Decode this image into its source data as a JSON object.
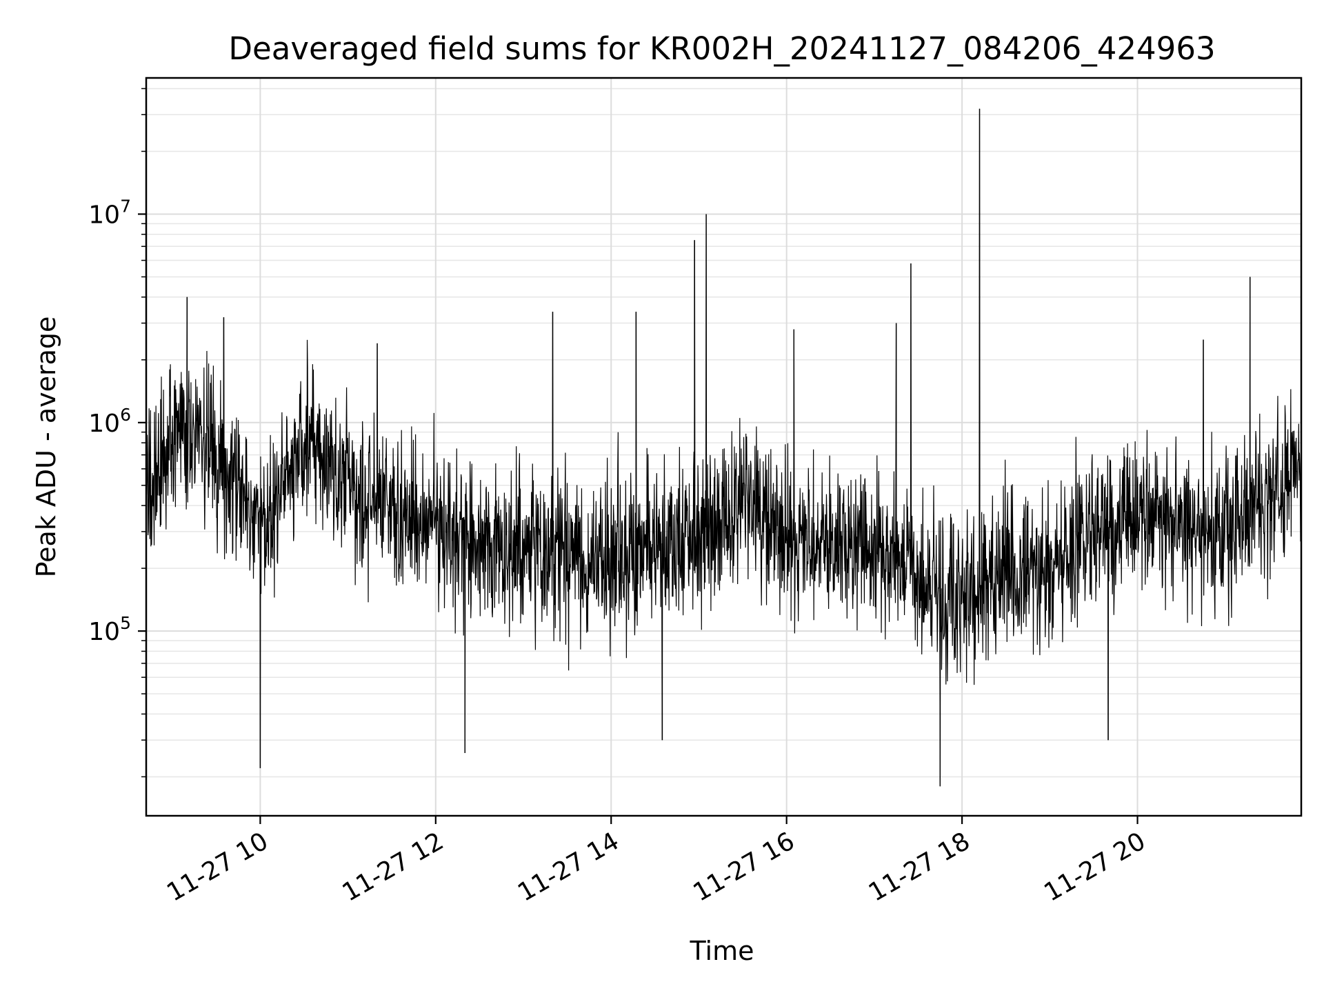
{
  "chart_data": {
    "type": "line",
    "title": "Deaveraged field sums for KR002H_20241127_084206_424963",
    "xlabel": "Time",
    "ylabel": "Peak ADU - average",
    "y_scale": "log",
    "x_range": [
      "2024-11-27T08:42",
      "2024-11-27T21:52"
    ],
    "ylim": [
      13000,
      45000000
    ],
    "grid": {
      "major": true,
      "minor_y": true
    },
    "line_color": "#000000",
    "x_ticks": [
      {
        "time": "2024-11-27T10:00",
        "label": "11-27 10"
      },
      {
        "time": "2024-11-27T12:00",
        "label": "11-27 12"
      },
      {
        "time": "2024-11-27T14:00",
        "label": "11-27 14"
      },
      {
        "time": "2024-11-27T16:00",
        "label": "11-27 16"
      },
      {
        "time": "2024-11-27T18:00",
        "label": "11-27 18"
      },
      {
        "time": "2024-11-27T20:00",
        "label": "11-27 20"
      }
    ],
    "y_ticks": [
      {
        "value": 100000,
        "base": "10",
        "exp": "5"
      },
      {
        "value": 1000000,
        "base": "10",
        "exp": "6"
      },
      {
        "value": 10000000,
        "base": "10",
        "exp": "7"
      }
    ],
    "trend": [
      {
        "time": "2024-11-27T08:42",
        "value": 500000
      },
      {
        "time": "2024-11-27T09:00",
        "value": 800000
      },
      {
        "time": "2024-11-27T09:15",
        "value": 1000000
      },
      {
        "time": "2024-11-27T09:30",
        "value": 700000
      },
      {
        "time": "2024-11-27T10:00",
        "value": 300000
      },
      {
        "time": "2024-11-27T10:30",
        "value": 800000
      },
      {
        "time": "2024-11-27T11:00",
        "value": 550000
      },
      {
        "time": "2024-11-27T11:30",
        "value": 400000
      },
      {
        "time": "2024-11-27T12:00",
        "value": 300000
      },
      {
        "time": "2024-11-27T13:00",
        "value": 250000
      },
      {
        "time": "2024-11-27T14:00",
        "value": 220000
      },
      {
        "time": "2024-11-27T15:00",
        "value": 300000
      },
      {
        "time": "2024-11-27T15:30",
        "value": 400000
      },
      {
        "time": "2024-11-27T16:00",
        "value": 300000
      },
      {
        "time": "2024-11-27T17:00",
        "value": 250000
      },
      {
        "time": "2024-11-27T17:45",
        "value": 150000
      },
      {
        "time": "2024-11-27T18:00",
        "value": 140000
      },
      {
        "time": "2024-11-27T18:30",
        "value": 200000
      },
      {
        "time": "2024-11-27T19:00",
        "value": 180000
      },
      {
        "time": "2024-11-27T19:30",
        "value": 300000
      },
      {
        "time": "2024-11-27T20:00",
        "value": 350000
      },
      {
        "time": "2024-11-27T21:00",
        "value": 300000
      },
      {
        "time": "2024-11-27T21:52",
        "value": 600000
      }
    ],
    "spikes": [
      {
        "time": "2024-11-27T09:10",
        "value": 4000000
      },
      {
        "time": "2024-11-27T09:35",
        "value": 3200000
      },
      {
        "time": "2024-11-27T11:20",
        "value": 2400000
      },
      {
        "time": "2024-11-27T13:20",
        "value": 3400000
      },
      {
        "time": "2024-11-27T14:17",
        "value": 3400000
      },
      {
        "time": "2024-11-27T14:57",
        "value": 7500000
      },
      {
        "time": "2024-11-27T15:05",
        "value": 10000000
      },
      {
        "time": "2024-11-27T16:05",
        "value": 2800000
      },
      {
        "time": "2024-11-27T17:15",
        "value": 3000000
      },
      {
        "time": "2024-11-27T17:25",
        "value": 5800000
      },
      {
        "time": "2024-11-27T18:12",
        "value": 32000000
      },
      {
        "time": "2024-11-27T21:17",
        "value": 5000000
      },
      {
        "time": "2024-11-27T20:45",
        "value": 2500000
      }
    ],
    "dips": [
      {
        "time": "2024-11-27T10:00",
        "value": 22000
      },
      {
        "time": "2024-11-27T12:20",
        "value": 26000
      },
      {
        "time": "2024-11-27T17:45",
        "value": 18000
      },
      {
        "time": "2024-11-27T14:35",
        "value": 30000
      },
      {
        "time": "2024-11-27T19:40",
        "value": 30000
      }
    ]
  }
}
